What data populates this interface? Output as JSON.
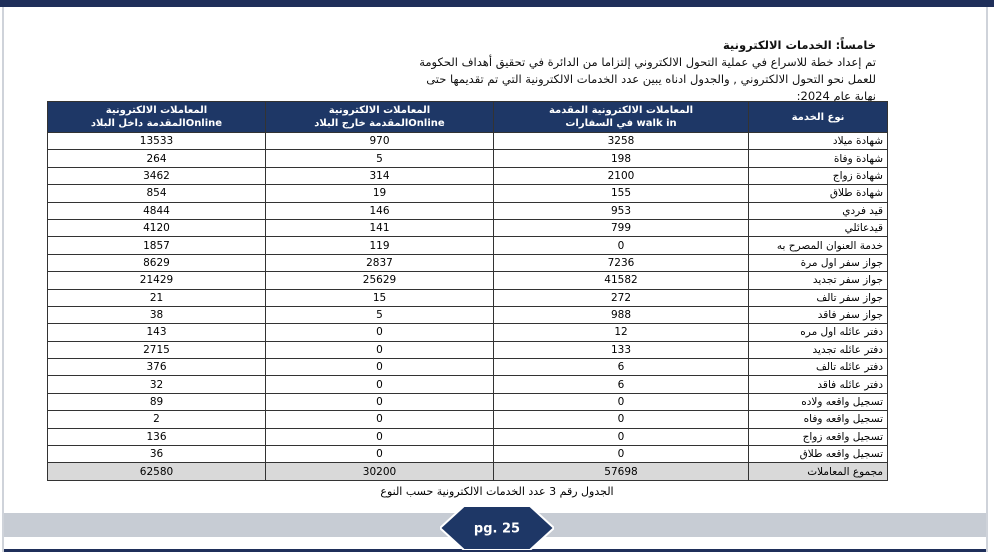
{
  "heading": "خامساً: الخدمات الالكترونية",
  "paragraph": [
    "تم إعداد خطة  للاسراع في عملية التحول الالكتروني إلتزاما من الدائرة في تحقيق أهداف الحكومة",
    "للعمل نحو التحول الالكتروني , والجدول ادناه يبين عدد الخدمات الالكترونية التي تم تقديمها حتى",
    "نهاية عام 2024:"
  ],
  "table": {
    "header": [
      [
        "نوع الخدمة"
      ],
      [
        "المعاملات الالكترونية المقدمة",
        "walk in في السفارات"
      ],
      [
        "المعاملات الالكترونية",
        "Onlineالمقدمة خارج البلاد"
      ],
      [
        "المعاملات الالكترونية",
        "Onlineالمقدمة داخل البلاد"
      ]
    ],
    "rows": [
      [
        "شهادة ميلاد",
        3258,
        970,
        13533
      ],
      [
        "شهادة وفاة",
        198,
        5,
        264
      ],
      [
        "شهادة زواج",
        2100,
        314,
        3462
      ],
      [
        "شهادة طلاق",
        155,
        19,
        854
      ],
      [
        "قيد فردي",
        953,
        146,
        4844
      ],
      [
        "قيدعائلي",
        799,
        141,
        4120
      ],
      [
        "خدمة العنوان المصرح به",
        0,
        119,
        1857
      ],
      [
        "جواز سفر اول مرة",
        7236,
        2837,
        8629
      ],
      [
        "جواز سفر تجديد",
        41582,
        25629,
        21429
      ],
      [
        "جواز سفر تالف",
        272,
        15,
        21
      ],
      [
        "جواز سفر فاقد",
        988,
        5,
        38
      ],
      [
        "دفتر عائله اول مره",
        12,
        0,
        143
      ],
      [
        "دفتر عائله تجديد",
        133,
        0,
        2715
      ],
      [
        "دفتر عائله تالف",
        6,
        0,
        376
      ],
      [
        "دفتر عائله فاقد",
        6,
        0,
        32
      ],
      [
        "تسجيل واقعه ولاده",
        0,
        0,
        89
      ],
      [
        "تسجيل واقعه وفاه",
        0,
        0,
        2
      ],
      [
        "تسجيل واقعه زواج",
        0,
        0,
        136
      ],
      [
        "تسجيل واقعه طلاق",
        0,
        0,
        36
      ]
    ],
    "total": [
      "مجموع المعاملات",
      57698,
      30200,
      62580
    ]
  },
  "caption": "الجدول رقم  3 عدد الخدمات الالكترونية حسب النوع",
  "page_number": "pg. 25"
}
